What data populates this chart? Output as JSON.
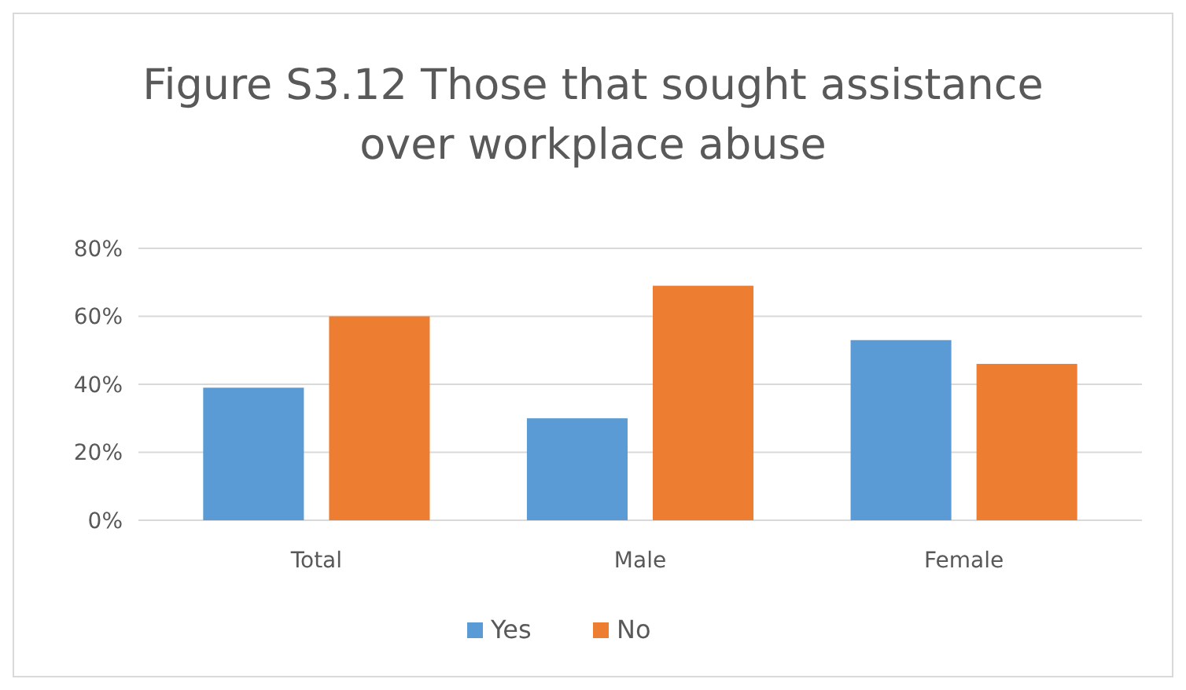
{
  "chart_data": {
    "type": "bar",
    "title": "Figure S3.12 Those that sought assistance over workplace abuse",
    "categories": [
      "Total",
      "Male",
      "Female"
    ],
    "series": [
      {
        "name": "Yes",
        "color": "#5b9bd5",
        "values": [
          39,
          30,
          53
        ]
      },
      {
        "name": "No",
        "color": "#ed7d31",
        "values": [
          60,
          69,
          46
        ]
      }
    ],
    "ylim": [
      0,
      80
    ],
    "yticks": [
      {
        "value": 0,
        "label": "0%"
      },
      {
        "value": 20,
        "label": "20%"
      },
      {
        "value": 40,
        "label": "40%"
      },
      {
        "value": 60,
        "label": "60%"
      },
      {
        "value": 80,
        "label": "80%"
      }
    ],
    "grid": "y",
    "legend": "bottom"
  }
}
